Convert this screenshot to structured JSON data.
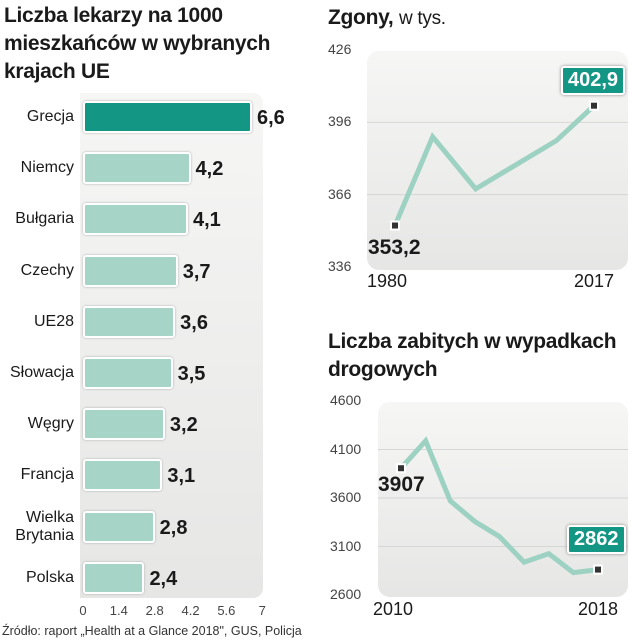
{
  "chart_data": [
    {
      "type": "bar",
      "orientation": "horizontal",
      "title": "Liczba lekarzy na 1000 mieszkańców w wybranych krajach UE",
      "categories": [
        "Grecja",
        "Niemcy",
        "Bułgaria",
        "Czechy",
        "UE28",
        "Słowacja",
        "Węgry",
        "Francja",
        "Wielka Brytania",
        "Polska"
      ],
      "values": [
        6.6,
        4.2,
        4.1,
        3.7,
        3.6,
        3.5,
        3.2,
        3.1,
        2.8,
        2.4
      ],
      "value_labels": [
        "6,6",
        "4,2",
        "4,1",
        "3,7",
        "3,6",
        "3,5",
        "3,2",
        "3,1",
        "2,8",
        "2,4"
      ],
      "highlight_color": "#139784",
      "bar_color": "#a6d4c6",
      "xticks": [
        "0",
        "1.4",
        "2.8",
        "4.2",
        "5.6",
        "7"
      ],
      "xlim": [
        0,
        7
      ]
    },
    {
      "type": "line",
      "title": "Zgony,",
      "subtitle": "w tys.",
      "x": [
        1980,
        1987,
        1995,
        2010,
        2017
      ],
      "values": [
        353.2,
        390,
        368.4,
        388.4,
        402.9
      ],
      "yticks": [
        "426",
        "396",
        "366",
        "336"
      ],
      "ylim": [
        336,
        426
      ],
      "xlim": [
        1980,
        2017
      ],
      "xlabels": [
        "1980",
        "2017"
      ],
      "start_label": "353,2",
      "end_label": "402,9",
      "line_color": "#9dd2c2"
    },
    {
      "type": "line",
      "title": "Liczba zabitych w wypadkach drogowych",
      "x": [
        2010,
        2011,
        2012,
        2013,
        2014,
        2015,
        2016,
        2017,
        2018
      ],
      "values": [
        3907,
        4189,
        3571,
        3357,
        3202,
        2938,
        3026,
        2831,
        2862
      ],
      "yticks": [
        "4600",
        "4100",
        "3600",
        "3100",
        "2600"
      ],
      "ylim": [
        2600,
        4600
      ],
      "xlim": [
        2010,
        2018
      ],
      "xlabels": [
        "2010",
        "2018"
      ],
      "start_label": "3907",
      "end_label": "2862",
      "line_color": "#9dd2c2"
    }
  ],
  "source": "Źródło: raport „Health at a Glance 2018\", GUS, Policja"
}
